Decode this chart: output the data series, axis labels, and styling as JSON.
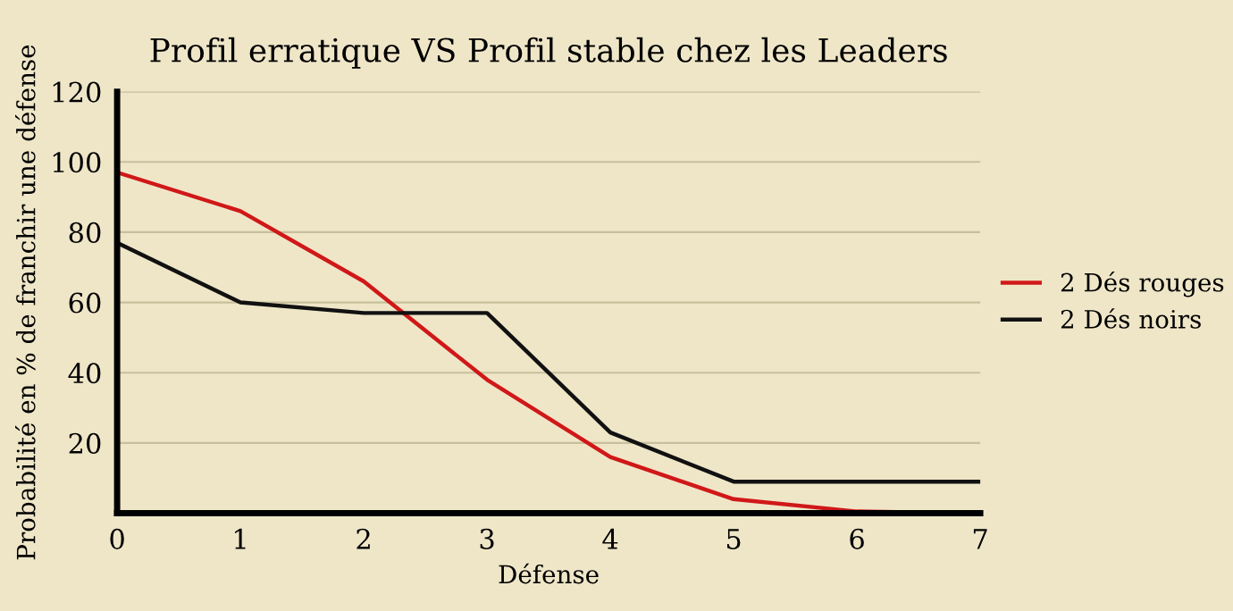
{
  "chart_data": {
    "type": "line",
    "title": "Profil erratique VS Profil stable chez les Leaders",
    "xlabel": "Défense",
    "ylabel": "Probabilité en % de franchir une défense",
    "x": [
      0,
      1,
      2,
      3,
      4,
      5,
      6,
      7
    ],
    "series": [
      {
        "name": "2 Dés rouges",
        "color": "#d01818",
        "values": [
          97,
          86,
          66,
          38,
          16,
          4,
          0.5,
          0
        ]
      },
      {
        "name": "2 Dés noirs",
        "color": "#111111",
        "values": [
          77,
          60,
          57,
          57,
          23,
          9,
          9,
          9
        ]
      }
    ],
    "xlim": [
      0,
      7
    ],
    "xticks": [
      0,
      1,
      2,
      3,
      4,
      5,
      6,
      7
    ],
    "ylim": [
      0,
      120
    ],
    "yticks": [
      20,
      40,
      60,
      80,
      100,
      120
    ],
    "grid": "y",
    "legend": "right",
    "marker": "none",
    "line_style": "solid"
  }
}
